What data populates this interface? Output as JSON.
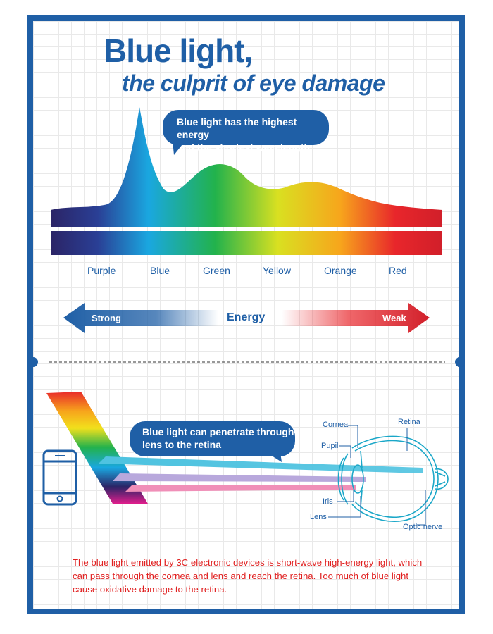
{
  "title": {
    "main": "Blue light,",
    "sub": "the culprit of eye damage"
  },
  "callouts": {
    "energy": [
      "Blue light has the highest energy",
      "and the shortest wavelength"
    ],
    "penetrate": [
      "Blue light can penetrate through",
      "lens to the retina"
    ]
  },
  "spectrum_labels": [
    "Purple",
    "Blue",
    "Green",
    "Yellow",
    "Orange",
    "Red"
  ],
  "energy_scale": {
    "label": "Energy",
    "strong": "Strong",
    "weak": "Weak"
  },
  "eye_labels": {
    "cornea": "Cornea",
    "pupil": "Pupil",
    "iris": "Iris",
    "lens": "Lens",
    "retina": "Retina",
    "optic_nerve": "Optic nerve"
  },
  "description": "The blue light emitted by 3C electronic devices is short-wave high-energy light, which can pass through the cornea and lens and reach the retina. Too much of blue light cause oxidative damage to the retina.",
  "colors": {
    "brand": "#1f5fa6",
    "warning_text": "#e02020",
    "spectrum": [
      "#2b2466",
      "#2f6fc0",
      "#1aa7e0",
      "#22b24c",
      "#d9e021",
      "#f7a51c",
      "#e8262b",
      "#d11f2a"
    ],
    "beam_blue": "#4fc3e0",
    "beam_violet": "#b8a8dc",
    "beam_pink": "#f08fb8"
  },
  "icons": [
    "smartphone-icon",
    "prism-icon",
    "eye-diagram-icon"
  ]
}
